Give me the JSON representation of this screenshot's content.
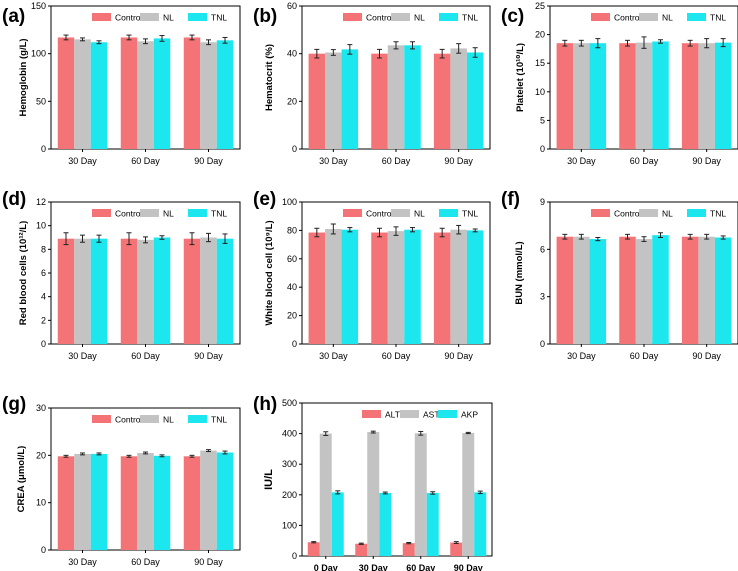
{
  "figure_colors": {
    "Control": "#f47376",
    "NL": "#c3c3c3",
    "TNL": "#1ce7ef",
    "ALT": "#f47376",
    "AST": "#c3c3c3",
    "AKP": "#1ce7ef"
  },
  "chart_data": [
    {
      "panel": "(a)",
      "type": "bar",
      "title": "",
      "ylabel": "Hemoglobin (g/L)",
      "xlabel": "",
      "categories": [
        "30 Day",
        "60 Day",
        "90 Day"
      ],
      "ylim": [
        0,
        150
      ],
      "yticks": [
        0,
        50,
        100,
        150
      ],
      "series": [
        {
          "name": "Control",
          "values": [
            117,
            117,
            117
          ],
          "errors": [
            2.5,
            2.5,
            2.5
          ]
        },
        {
          "name": "NL",
          "values": [
            115,
            113,
            112
          ],
          "errors": [
            1.5,
            2.5,
            2.5
          ]
        },
        {
          "name": "TNL",
          "values": [
            112,
            116,
            114
          ],
          "errors": [
            1.5,
            3,
            3
          ]
        }
      ]
    },
    {
      "panel": "(b)",
      "type": "bar",
      "title": "",
      "ylabel": "Hematocrit (%)",
      "xlabel": "",
      "categories": [
        "30 Day",
        "60 Day",
        "90 Day"
      ],
      "ylim": [
        0,
        60
      ],
      "yticks": [
        0,
        20,
        40,
        60
      ],
      "series": [
        {
          "name": "Control",
          "values": [
            40,
            40,
            40
          ],
          "errors": [
            1.8,
            1.8,
            1.8
          ]
        },
        {
          "name": "NL",
          "values": [
            40.5,
            43.5,
            42.2
          ],
          "errors": [
            1.2,
            1.5,
            2
          ]
        },
        {
          "name": "TNL",
          "values": [
            41.8,
            43.5,
            40.5
          ],
          "errors": [
            2,
            1.5,
            2
          ]
        }
      ]
    },
    {
      "panel": "(c)",
      "type": "bar",
      "title": "",
      "ylabel": "Platelet (10¹⁰/L)",
      "xlabel": "",
      "categories": [
        "30 Day",
        "60 Day",
        "90 Day"
      ],
      "ylim": [
        0,
        25
      ],
      "yticks": [
        0,
        5,
        10,
        15,
        20,
        25
      ],
      "series": [
        {
          "name": "Control",
          "values": [
            18.5,
            18.5,
            18.5
          ],
          "errors": [
            0.5,
            0.5,
            0.5
          ]
        },
        {
          "name": "NL",
          "values": [
            18.5,
            18.6,
            18.5
          ],
          "errors": [
            0.5,
            1,
            0.8
          ]
        },
        {
          "name": "TNL",
          "values": [
            18.5,
            18.8,
            18.6
          ],
          "errors": [
            0.8,
            0.3,
            0.7
          ]
        }
      ]
    },
    {
      "panel": "(d)",
      "type": "bar",
      "title": "",
      "ylabel": "Red blood cells (10¹²/L)",
      "xlabel": "",
      "categories": [
        "30 Day",
        "60 Day",
        "90 Day"
      ],
      "ylim": [
        0,
        12
      ],
      "yticks": [
        0,
        2,
        4,
        6,
        8,
        10,
        12
      ],
      "series": [
        {
          "name": "Control",
          "values": [
            8.9,
            8.9,
            8.9
          ],
          "errors": [
            0.5,
            0.5,
            0.5
          ]
        },
        {
          "name": "NL",
          "values": [
            8.9,
            8.8,
            9.0
          ],
          "errors": [
            0.3,
            0.25,
            0.35
          ]
        },
        {
          "name": "TNL",
          "values": [
            8.9,
            9.0,
            8.9
          ],
          "errors": [
            0.3,
            0.15,
            0.4
          ]
        }
      ]
    },
    {
      "panel": "(e)",
      "type": "bar",
      "title": "",
      "ylabel": "White blood cell (10⁹/L)",
      "xlabel": "",
      "categories": [
        "30 Day",
        "60 Day",
        "90 Day"
      ],
      "ylim": [
        0,
        100
      ],
      "yticks": [
        0,
        20,
        40,
        60,
        80,
        100
      ],
      "series": [
        {
          "name": "Control",
          "values": [
            78.5,
            78.5,
            78.5
          ],
          "errors": [
            3,
            3,
            3
          ]
        },
        {
          "name": "NL",
          "values": [
            81,
            79.5,
            80.5
          ],
          "errors": [
            3.5,
            3,
            3
          ]
        },
        {
          "name": "TNL",
          "values": [
            80.5,
            80.5,
            80
          ],
          "errors": [
            1.5,
            1.5,
            1
          ]
        }
      ]
    },
    {
      "panel": "(f)",
      "type": "bar",
      "title": "",
      "ylabel": "BUN (mmol/L)",
      "xlabel": "",
      "categories": [
        "30 Day",
        "60 Day",
        "90 Day"
      ],
      "ylim": [
        0,
        9
      ],
      "yticks": [
        0,
        3,
        6,
        9
      ],
      "series": [
        {
          "name": "Control",
          "values": [
            6.8,
            6.8,
            6.8
          ],
          "errors": [
            0.15,
            0.15,
            0.15
          ]
        },
        {
          "name": "NL",
          "values": [
            6.8,
            6.65,
            6.8
          ],
          "errors": [
            0.15,
            0.15,
            0.15
          ]
        },
        {
          "name": "TNL",
          "values": [
            6.65,
            6.9,
            6.75
          ],
          "errors": [
            0.1,
            0.15,
            0.1
          ]
        }
      ]
    },
    {
      "panel": "(g)",
      "type": "bar",
      "title": "",
      "ylabel": "CREA (μmol/L)",
      "xlabel": "",
      "categories": [
        "30 Day",
        "60 Day",
        "90 Day"
      ],
      "ylim": [
        0,
        30
      ],
      "yticks": [
        0,
        10,
        20,
        30
      ],
      "series": [
        {
          "name": "Control",
          "values": [
            19.8,
            19.8,
            19.8
          ],
          "errors": [
            0.2,
            0.2,
            0.2
          ]
        },
        {
          "name": "NL",
          "values": [
            20.3,
            20.5,
            21
          ],
          "errors": [
            0.2,
            0.2,
            0.2
          ]
        },
        {
          "name": "TNL",
          "values": [
            20.3,
            19.9,
            20.6
          ],
          "errors": [
            0.2,
            0.2,
            0.3
          ]
        }
      ]
    },
    {
      "panel": "(h)",
      "type": "bar",
      "title": "",
      "ylabel": "IU/L",
      "xlabel": "",
      "categories": [
        "0 Day",
        "30 Day",
        "60 Day",
        "90 Day"
      ],
      "ylim": [
        0,
        500
      ],
      "yticks": [
        0,
        100,
        200,
        300,
        400,
        500
      ],
      "series": [
        {
          "name": "ALT",
          "values": [
            45,
            40,
            42,
            44
          ],
          "errors": [
            2,
            2,
            2,
            3
          ]
        },
        {
          "name": "AST",
          "values": [
            400,
            405,
            401,
            402
          ],
          "errors": [
            6,
            3,
            6,
            2
          ]
        },
        {
          "name": "AKP",
          "values": [
            208,
            206,
            206,
            208
          ],
          "errors": [
            5,
            3,
            4,
            4
          ]
        }
      ]
    }
  ]
}
